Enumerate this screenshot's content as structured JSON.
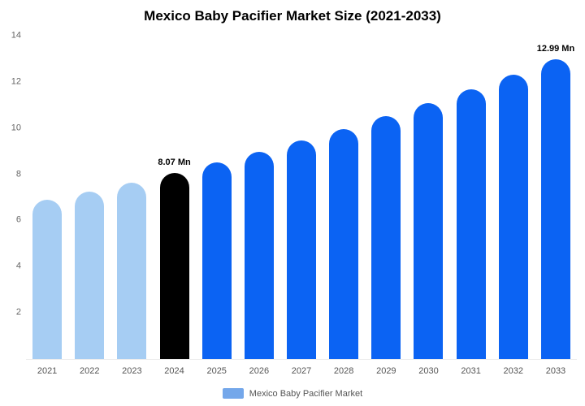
{
  "title": "Mexico Baby Pacifier Market Size (2021-2033)",
  "legend": {
    "label": "Mexico Baby Pacifier Market",
    "swatch_color": "#74a7ea"
  },
  "colors": {
    "historical_bar": "#a6cdf3",
    "current_year_bar": "#000000",
    "forecast_bar": "#0b63f3",
    "axis_text": "#666666",
    "title_text": "#000000"
  },
  "chart_data": {
    "type": "bar",
    "title": "Mexico Baby Pacifier Market Size (2021-2033)",
    "xlabel": "",
    "ylabel": "",
    "ylim": [
      0,
      14
    ],
    "yticks": [
      2,
      4,
      6,
      8,
      10,
      12,
      14
    ],
    "grid": false,
    "legend_position": "bottom",
    "categories": [
      "2021",
      "2022",
      "2023",
      "2024",
      "2025",
      "2026",
      "2027",
      "2028",
      "2029",
      "2030",
      "2031",
      "2032",
      "2033"
    ],
    "values": [
      6.88,
      7.26,
      7.65,
      8.07,
      8.51,
      8.97,
      9.46,
      9.97,
      10.51,
      11.08,
      11.69,
      12.32,
      12.99
    ],
    "bar_colors": [
      "#a6cdf3",
      "#a6cdf3",
      "#a6cdf3",
      "#000000",
      "#0b63f3",
      "#0b63f3",
      "#0b63f3",
      "#0b63f3",
      "#0b63f3",
      "#0b63f3",
      "#0b63f3",
      "#0b63f3",
      "#0b63f3"
    ],
    "annotations": [
      {
        "category": "2024",
        "text": "8.07 Mn"
      },
      {
        "category": "2033",
        "text": "12.99 Mn"
      }
    ],
    "series_name": "Mexico Baby Pacifier Market"
  }
}
